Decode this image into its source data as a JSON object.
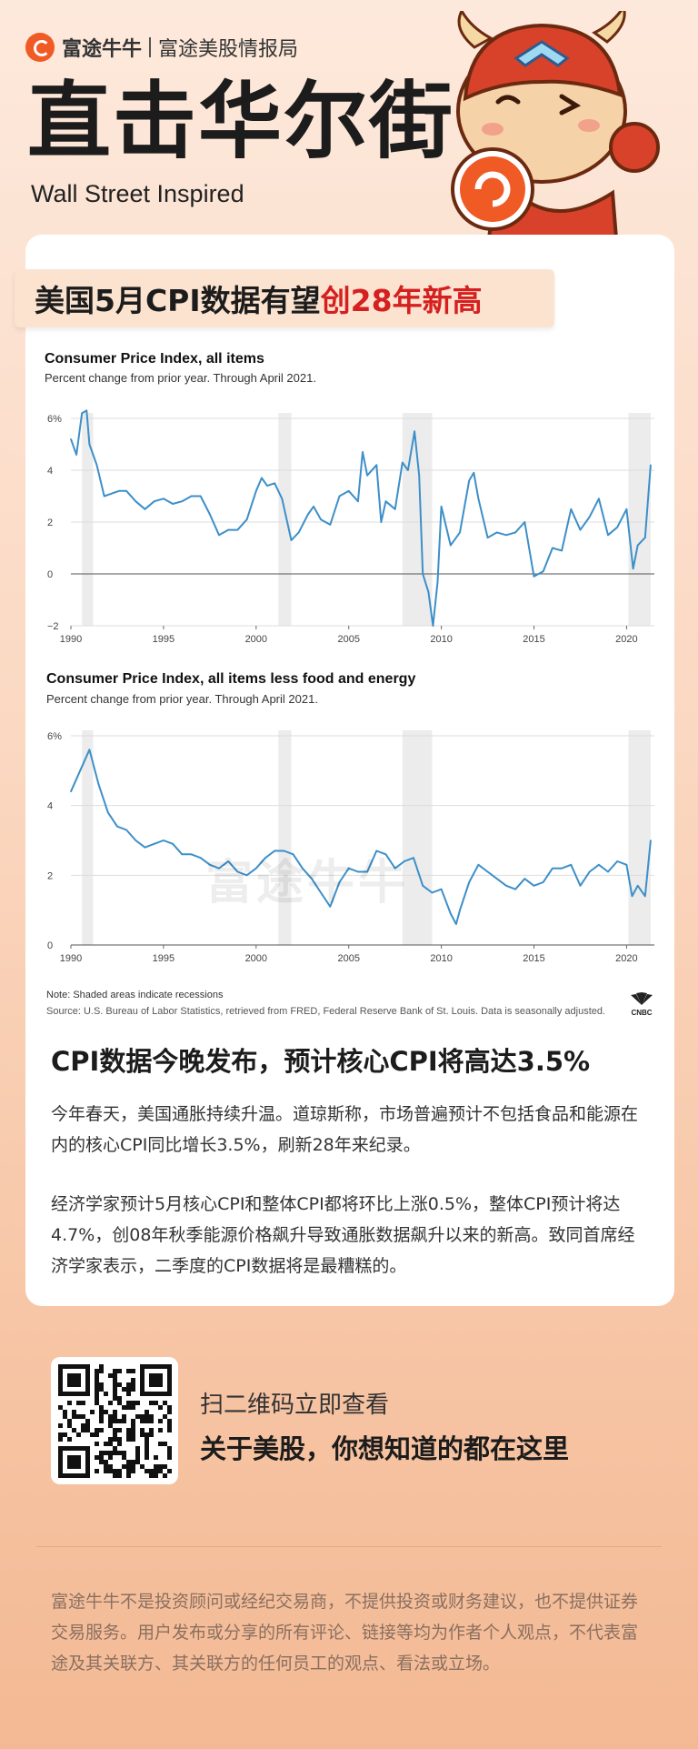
{
  "header": {
    "brand": "富途牛牛",
    "brand_sub": "富途美股情报局",
    "title": "直击华尔街",
    "subtitle": "Wall Street Inspired"
  },
  "headline": {
    "prefix": "美国5月CPI数据有望",
    "highlight": "创28年新高"
  },
  "charts": {
    "note": "Note: Shaded areas indicate recessions",
    "source": "Source: U.S. Bureau of Labor Statistics, retrieved from FRED, Federal Reserve Bank of St. Louis. Data is seasonally adjusted.",
    "cnbc": "CNBC",
    "watermark": "富途牛牛"
  },
  "colors": {
    "accent": "#f05a24",
    "highlight": "#d61f1f",
    "line": "#3d8fc9",
    "recession": "#ececec"
  },
  "chart_data": [
    {
      "type": "line",
      "title": "Consumer Price Index, all items",
      "subtitle": "Percent change from prior year. Through April 2021.",
      "x_ticks": [
        "1990",
        "1995",
        "2000",
        "2005",
        "2010",
        "2015",
        "2020"
      ],
      "y_ticks": [
        "6%",
        "4",
        "2",
        "0",
        "−2"
      ],
      "xlim": [
        1990,
        2021.5
      ],
      "ylim": [
        -2,
        6
      ],
      "grid": true,
      "recessions": [
        [
          1990.6,
          1991.2
        ],
        [
          2001.2,
          2001.9
        ],
        [
          2007.9,
          2009.5
        ],
        [
          2020.1,
          2021.3
        ]
      ],
      "series": [
        {
          "x": [
            1990.0,
            1990.3,
            1990.6,
            1990.85,
            1991.0,
            1991.4,
            1991.8,
            1992.2,
            1992.6,
            1993.0,
            1993.5,
            1994.0,
            1994.5,
            1995.0,
            1995.5,
            1996.0,
            1996.5,
            1997.0,
            1997.5,
            1998.0,
            1998.5,
            1999.0,
            1999.5,
            2000.0,
            2000.3,
            2000.6,
            2001.0,
            2001.4,
            2001.9,
            2002.3,
            2002.8,
            2003.1,
            2003.5,
            2004.0,
            2004.5,
            2005.0,
            2005.5,
            2005.75,
            2006.0,
            2006.5,
            2006.75,
            2007.0,
            2007.5,
            2007.9,
            2008.2,
            2008.55,
            2008.8,
            2009.0,
            2009.3,
            2009.55,
            2009.8,
            2010.0,
            2010.5,
            2011.0,
            2011.5,
            2011.75,
            2012.0,
            2012.5,
            2013.0,
            2013.5,
            2014.0,
            2014.5,
            2015.0,
            2015.5,
            2016.0,
            2016.5,
            2017.0,
            2017.5,
            2018.0,
            2018.5,
            2019.0,
            2019.5,
            2020.0,
            2020.35,
            2020.6,
            2021.0,
            2021.3
          ],
          "y": [
            5.2,
            4.6,
            6.2,
            6.3,
            5.0,
            4.2,
            3.0,
            3.1,
            3.2,
            3.2,
            2.8,
            2.5,
            2.8,
            2.9,
            2.7,
            2.8,
            3.0,
            3.0,
            2.3,
            1.5,
            1.7,
            1.7,
            2.1,
            3.2,
            3.7,
            3.4,
            3.5,
            2.9,
            1.3,
            1.6,
            2.3,
            2.6,
            2.1,
            1.9,
            3.0,
            3.2,
            2.8,
            4.7,
            3.8,
            4.2,
            2.0,
            2.8,
            2.5,
            4.3,
            4.0,
            5.5,
            3.8,
            0.0,
            -0.7,
            -2.0,
            -0.3,
            2.6,
            1.1,
            1.6,
            3.6,
            3.9,
            2.9,
            1.4,
            1.6,
            1.5,
            1.6,
            2.0,
            -0.1,
            0.1,
            1.0,
            0.9,
            2.5,
            1.7,
            2.2,
            2.9,
            1.5,
            1.8,
            2.5,
            0.2,
            1.1,
            1.4,
            4.2
          ]
        }
      ]
    },
    {
      "type": "line",
      "title": "Consumer Price Index, all items less food and energy",
      "subtitle": "Percent change from prior year. Through April 2021.",
      "x_ticks": [
        "1990",
        "1995",
        "2000",
        "2005",
        "2010",
        "2015",
        "2020"
      ],
      "y_ticks": [
        "6%",
        "4",
        "2",
        "0"
      ],
      "xlim": [
        1990,
        2021.5
      ],
      "ylim": [
        0,
        6
      ],
      "grid": true,
      "recessions": [
        [
          1990.6,
          1991.2
        ],
        [
          2001.2,
          2001.9
        ],
        [
          2007.9,
          2009.5
        ],
        [
          2020.1,
          2021.3
        ]
      ],
      "series": [
        {
          "x": [
            1990.0,
            1990.5,
            1991.0,
            1991.5,
            1992.0,
            1992.5,
            1993.0,
            1993.5,
            1994.0,
            1994.5,
            1995.0,
            1995.5,
            1996.0,
            1996.5,
            1997.0,
            1997.5,
            1998.0,
            1998.5,
            1999.0,
            1999.5,
            2000.0,
            2000.5,
            2001.0,
            2001.5,
            2002.0,
            2002.5,
            2003.0,
            2003.5,
            2004.0,
            2004.5,
            2005.0,
            2005.5,
            2006.0,
            2006.5,
            2007.0,
            2007.5,
            2008.0,
            2008.5,
            2009.0,
            2009.5,
            2010.0,
            2010.5,
            2010.8,
            2011.0,
            2011.5,
            2012.0,
            2012.5,
            2013.0,
            2013.5,
            2014.0,
            2014.5,
            2015.0,
            2015.5,
            2016.0,
            2016.5,
            2017.0,
            2017.5,
            2018.0,
            2018.5,
            2019.0,
            2019.5,
            2020.0,
            2020.3,
            2020.6,
            2021.0,
            2021.3
          ],
          "y": [
            4.4,
            5.0,
            5.6,
            4.6,
            3.8,
            3.4,
            3.3,
            3.0,
            2.8,
            2.9,
            3.0,
            2.9,
            2.6,
            2.6,
            2.5,
            2.3,
            2.2,
            2.4,
            2.1,
            2.0,
            2.2,
            2.5,
            2.7,
            2.7,
            2.6,
            2.2,
            1.9,
            1.5,
            1.1,
            1.8,
            2.2,
            2.1,
            2.1,
            2.7,
            2.6,
            2.2,
            2.4,
            2.5,
            1.7,
            1.5,
            1.6,
            0.9,
            0.6,
            1.0,
            1.8,
            2.3,
            2.1,
            1.9,
            1.7,
            1.6,
            1.9,
            1.7,
            1.8,
            2.2,
            2.2,
            2.3,
            1.7,
            2.1,
            2.3,
            2.1,
            2.4,
            2.3,
            1.4,
            1.7,
            1.4,
            3.0
          ]
        }
      ]
    }
  ],
  "section": {
    "title": "CPI数据今晚发布，预计核心CPI将高达3.5%",
    "para1": "今年春天，美国通胀持续升温。道琼斯称，市场普遍预计不包括食品和能源在内的核心CPI同比增长3.5%，刷新28年来纪录。",
    "para2": "经济学家预计5月核心CPI和整体CPI都将环比上涨0.5%，整体CPI预计将达4.7%，创08年秋季能源价格飙升导致通胀数据飙升以来的新高。致同首席经济学家表示，二季度的CPI数据将是最糟糕的。"
  },
  "qr": {
    "line1": "扫二维码立即查看",
    "line2": "关于美股，你想知道的都在这里"
  },
  "disclaimer": "富途牛牛不是投资顾问或经纪交易商，不提供投资或财务建议，也不提供证券交易服务。用户发布或分享的所有评论、链接等均为作者个人观点，不代表富途及其关联方、其关联方的任何员工的观点、看法或立场。"
}
